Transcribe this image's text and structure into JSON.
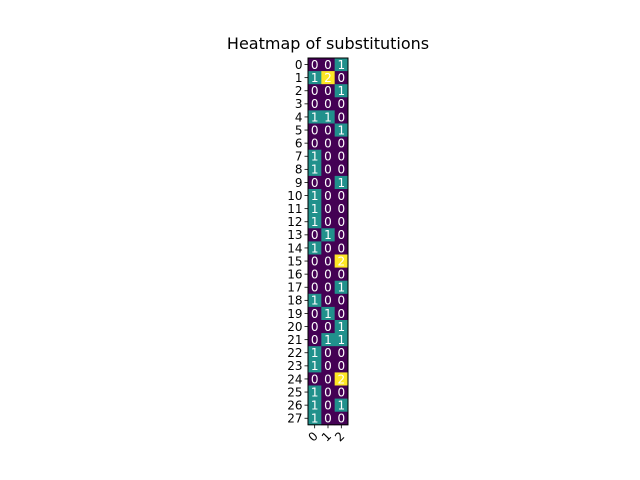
{
  "chart_data": {
    "type": "heatmap",
    "title": "Heatmap of substitutions",
    "xlabel": "",
    "ylabel": "",
    "columns": [
      "0",
      "1",
      "2"
    ],
    "rows": [
      "0",
      "1",
      "2",
      "3",
      "4",
      "5",
      "6",
      "7",
      "8",
      "9",
      "10",
      "11",
      "12",
      "13",
      "14",
      "15",
      "16",
      "17",
      "18",
      "19",
      "20",
      "21",
      "22",
      "23",
      "24",
      "25",
      "26",
      "27"
    ],
    "values": [
      [
        0,
        0,
        1
      ],
      [
        1,
        2,
        0
      ],
      [
        0,
        0,
        1
      ],
      [
        0,
        0,
        0
      ],
      [
        1,
        1,
        0
      ],
      [
        0,
        0,
        1
      ],
      [
        0,
        0,
        0
      ],
      [
        1,
        0,
        0
      ],
      [
        1,
        0,
        0
      ],
      [
        0,
        0,
        1
      ],
      [
        1,
        0,
        0
      ],
      [
        1,
        0,
        0
      ],
      [
        1,
        0,
        0
      ],
      [
        0,
        1,
        0
      ],
      [
        1,
        0,
        0
      ],
      [
        0,
        0,
        2
      ],
      [
        0,
        0,
        0
      ],
      [
        0,
        0,
        1
      ],
      [
        1,
        0,
        0
      ],
      [
        0,
        1,
        0
      ],
      [
        0,
        0,
        1
      ],
      [
        0,
        1,
        1
      ],
      [
        1,
        0,
        0
      ],
      [
        1,
        0,
        0
      ],
      [
        0,
        0,
        2
      ],
      [
        1,
        0,
        0
      ],
      [
        1,
        0,
        1
      ],
      [
        1,
        0,
        0
      ]
    ],
    "value_range": [
      0,
      2
    ],
    "colormap": "viridis",
    "colors": {
      "0": "#440154",
      "1": "#21918c",
      "2": "#fde725"
    },
    "label_colors": {
      "0": "#ffffff",
      "1": "#ffffff",
      "2": "#ffffff"
    },
    "x_tick_rotation": 45,
    "grid": false,
    "legend": "none"
  }
}
